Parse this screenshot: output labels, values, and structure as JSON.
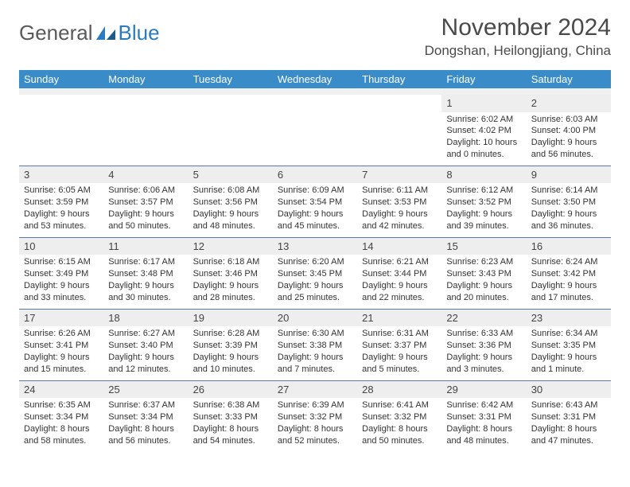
{
  "logo": {
    "text1": "General",
    "text2": "Blue"
  },
  "title": "November 2024",
  "location": "Dongshan, Heilongjiang, China",
  "colors": {
    "header_bg": "#3a8cc9",
    "header_text": "#ffffff",
    "daynum_bg": "#eeeeee",
    "week_border": "#5a7a9a",
    "body_text": "#333333",
    "logo_gray": "#5a5a5a",
    "logo_blue": "#2b7bbf"
  },
  "weekdays": [
    "Sunday",
    "Monday",
    "Tuesday",
    "Wednesday",
    "Thursday",
    "Friday",
    "Saturday"
  ],
  "weeks": [
    [
      null,
      null,
      null,
      null,
      null,
      {
        "n": "1",
        "sr": "6:02 AM",
        "ss": "4:02 PM",
        "dl": "10 hours and 0 minutes."
      },
      {
        "n": "2",
        "sr": "6:03 AM",
        "ss": "4:00 PM",
        "dl": "9 hours and 56 minutes."
      }
    ],
    [
      {
        "n": "3",
        "sr": "6:05 AM",
        "ss": "3:59 PM",
        "dl": "9 hours and 53 minutes."
      },
      {
        "n": "4",
        "sr": "6:06 AM",
        "ss": "3:57 PM",
        "dl": "9 hours and 50 minutes."
      },
      {
        "n": "5",
        "sr": "6:08 AM",
        "ss": "3:56 PM",
        "dl": "9 hours and 48 minutes."
      },
      {
        "n": "6",
        "sr": "6:09 AM",
        "ss": "3:54 PM",
        "dl": "9 hours and 45 minutes."
      },
      {
        "n": "7",
        "sr": "6:11 AM",
        "ss": "3:53 PM",
        "dl": "9 hours and 42 minutes."
      },
      {
        "n": "8",
        "sr": "6:12 AM",
        "ss": "3:52 PM",
        "dl": "9 hours and 39 minutes."
      },
      {
        "n": "9",
        "sr": "6:14 AM",
        "ss": "3:50 PM",
        "dl": "9 hours and 36 minutes."
      }
    ],
    [
      {
        "n": "10",
        "sr": "6:15 AM",
        "ss": "3:49 PM",
        "dl": "9 hours and 33 minutes."
      },
      {
        "n": "11",
        "sr": "6:17 AM",
        "ss": "3:48 PM",
        "dl": "9 hours and 30 minutes."
      },
      {
        "n": "12",
        "sr": "6:18 AM",
        "ss": "3:46 PM",
        "dl": "9 hours and 28 minutes."
      },
      {
        "n": "13",
        "sr": "6:20 AM",
        "ss": "3:45 PM",
        "dl": "9 hours and 25 minutes."
      },
      {
        "n": "14",
        "sr": "6:21 AM",
        "ss": "3:44 PM",
        "dl": "9 hours and 22 minutes."
      },
      {
        "n": "15",
        "sr": "6:23 AM",
        "ss": "3:43 PM",
        "dl": "9 hours and 20 minutes."
      },
      {
        "n": "16",
        "sr": "6:24 AM",
        "ss": "3:42 PM",
        "dl": "9 hours and 17 minutes."
      }
    ],
    [
      {
        "n": "17",
        "sr": "6:26 AM",
        "ss": "3:41 PM",
        "dl": "9 hours and 15 minutes."
      },
      {
        "n": "18",
        "sr": "6:27 AM",
        "ss": "3:40 PM",
        "dl": "9 hours and 12 minutes."
      },
      {
        "n": "19",
        "sr": "6:28 AM",
        "ss": "3:39 PM",
        "dl": "9 hours and 10 minutes."
      },
      {
        "n": "20",
        "sr": "6:30 AM",
        "ss": "3:38 PM",
        "dl": "9 hours and 7 minutes."
      },
      {
        "n": "21",
        "sr": "6:31 AM",
        "ss": "3:37 PM",
        "dl": "9 hours and 5 minutes."
      },
      {
        "n": "22",
        "sr": "6:33 AM",
        "ss": "3:36 PM",
        "dl": "9 hours and 3 minutes."
      },
      {
        "n": "23",
        "sr": "6:34 AM",
        "ss": "3:35 PM",
        "dl": "9 hours and 1 minute."
      }
    ],
    [
      {
        "n": "24",
        "sr": "6:35 AM",
        "ss": "3:34 PM",
        "dl": "8 hours and 58 minutes."
      },
      {
        "n": "25",
        "sr": "6:37 AM",
        "ss": "3:34 PM",
        "dl": "8 hours and 56 minutes."
      },
      {
        "n": "26",
        "sr": "6:38 AM",
        "ss": "3:33 PM",
        "dl": "8 hours and 54 minutes."
      },
      {
        "n": "27",
        "sr": "6:39 AM",
        "ss": "3:32 PM",
        "dl": "8 hours and 52 minutes."
      },
      {
        "n": "28",
        "sr": "6:41 AM",
        "ss": "3:32 PM",
        "dl": "8 hours and 50 minutes."
      },
      {
        "n": "29",
        "sr": "6:42 AM",
        "ss": "3:31 PM",
        "dl": "8 hours and 48 minutes."
      },
      {
        "n": "30",
        "sr": "6:43 AM",
        "ss": "3:31 PM",
        "dl": "8 hours and 47 minutes."
      }
    ]
  ],
  "labels": {
    "sunrise": "Sunrise: ",
    "sunset": "Sunset: ",
    "daylight": "Daylight: "
  }
}
